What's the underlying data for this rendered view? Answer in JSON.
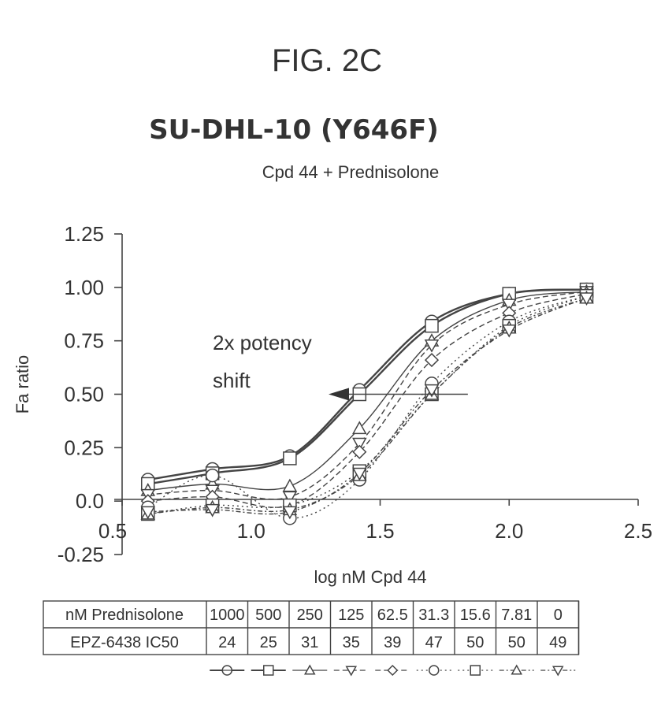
{
  "figure_label": "FIG. 2C",
  "chart_data": {
    "type": "line",
    "title": "SU-DHL-10 (Y646F)",
    "subtitle": "Cpd 44 + Prednisolone",
    "xlabel": "log nM Cpd 44",
    "ylabel": "Fa ratio",
    "xlim": [
      0.5,
      2.5
    ],
    "ylim": [
      -0.25,
      1.25
    ],
    "x_ticks": [
      "0.5",
      "1.0",
      "1.5",
      "2.0",
      "2.5"
    ],
    "y_ticks": [
      "1.25",
      "1.00",
      "0.75",
      "0.50",
      "0.25",
      "0.0",
      "-0.25"
    ],
    "grid": false,
    "annotation": {
      "line1": "2x  potency",
      "line2": "shift",
      "arrow_from_x": 1.84,
      "arrow_to_x": 1.3,
      "arrow_y": 0.5
    },
    "x": [
      0.6,
      0.85,
      1.15,
      1.42,
      1.7,
      2.0,
      2.3
    ],
    "series": [
      {
        "name": "1000",
        "marker": "circle-cross",
        "dash": "",
        "values": [
          0.1,
          0.15,
          0.21,
          0.52,
          0.84,
          0.97,
          0.99
        ]
      },
      {
        "name": "500",
        "marker": "square",
        "dash": "",
        "values": [
          0.08,
          0.13,
          0.2,
          0.5,
          0.82,
          0.97,
          0.99
        ]
      },
      {
        "name": "250",
        "marker": "triangle-up",
        "dash": "",
        "values": [
          0.05,
          0.08,
          0.07,
          0.34,
          0.75,
          0.94,
          0.98
        ]
      },
      {
        "name": "125",
        "marker": "triangle-down",
        "dash": "7 4",
        "values": [
          0.03,
          0.05,
          0.02,
          0.27,
          0.73,
          0.92,
          0.98
        ]
      },
      {
        "name": "62.5",
        "marker": "diamond",
        "dash": "7 4",
        "values": [
          0.0,
          0.02,
          -0.02,
          0.23,
          0.66,
          0.88,
          0.97
        ]
      },
      {
        "name": "31.3",
        "marker": "circle",
        "dash": "2 4",
        "values": [
          -0.03,
          0.12,
          -0.08,
          0.1,
          0.55,
          0.84,
          0.96
        ]
      },
      {
        "name": "15.6",
        "marker": "square",
        "dash": "2 4",
        "values": [
          -0.06,
          -0.02,
          -0.02,
          0.14,
          0.5,
          0.82,
          0.96
        ]
      },
      {
        "name": "7.81",
        "marker": "triangle-up",
        "dash": "6 3 2 3",
        "values": [
          -0.06,
          -0.03,
          -0.04,
          0.12,
          0.5,
          0.81,
          0.95
        ]
      },
      {
        "name": "0",
        "marker": "triangle-down",
        "dash": "6 3 2 3",
        "values": [
          -0.05,
          -0.04,
          -0.05,
          0.13,
          0.52,
          0.8,
          0.95
        ]
      }
    ]
  },
  "table": {
    "row1_header": "nM Prednisolone",
    "row2_header": "EPZ-6438 IC50",
    "concentrations": [
      "1000",
      "500",
      "250",
      "125",
      "62.5",
      "31.3",
      "15.6",
      "7.81",
      "0"
    ],
    "ic50": [
      "24",
      "25",
      "31",
      "35",
      "39",
      "47",
      "50",
      "50",
      "49"
    ]
  }
}
